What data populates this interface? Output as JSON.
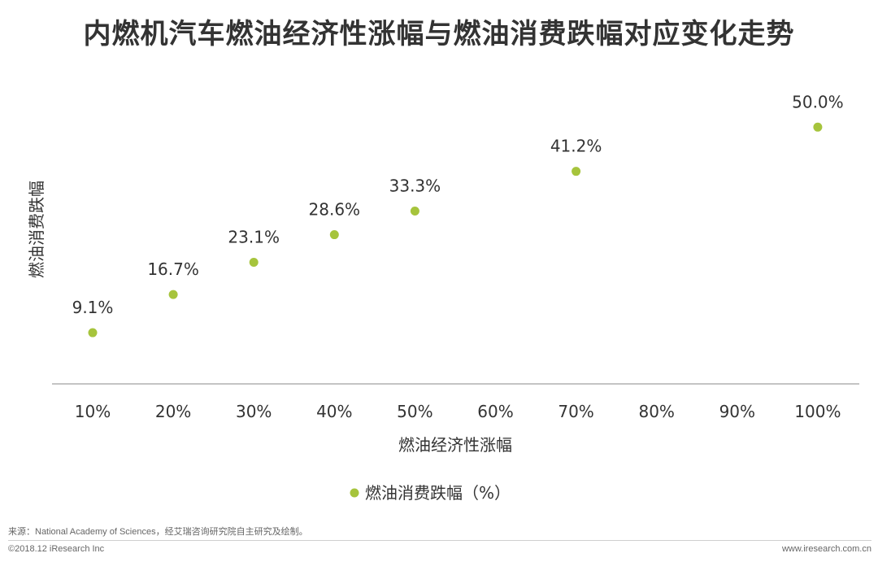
{
  "chart_data": {
    "type": "scatter",
    "title": "内燃机汽车燃油经济性涨幅与燃油消费跌幅对应变化走势",
    "xlabel": "燃油经济性涨幅",
    "ylabel": "燃油消费跌幅",
    "x_categories": [
      "10%",
      "20%",
      "30%",
      "40%",
      "50%",
      "60%",
      "70%",
      "80%",
      "90%",
      "100%"
    ],
    "series": [
      {
        "name": "燃油消费跌幅（%）",
        "color": "#a6c43c",
        "points": [
          {
            "x": "10%",
            "y": 9.1,
            "label": "9.1%"
          },
          {
            "x": "20%",
            "y": 16.7,
            "label": "16.7%"
          },
          {
            "x": "30%",
            "y": 23.1,
            "label": "23.1%"
          },
          {
            "x": "40%",
            "y": 28.6,
            "label": "28.6%"
          },
          {
            "x": "50%",
            "y": 33.3,
            "label": "33.3%"
          },
          {
            "x": "70%",
            "y": 41.2,
            "label": "41.2%"
          },
          {
            "x": "100%",
            "y": 50.0,
            "label": "50.0%"
          }
        ]
      }
    ],
    "legend_position": "bottom",
    "grid": false
  },
  "footer": {
    "source": "来源：National Academy of Sciences，经艾瑞咨询研究院自主研究及绘制。",
    "copyright": "©2018.12 iResearch Inc",
    "site": "www.iresearch.com.cn"
  }
}
